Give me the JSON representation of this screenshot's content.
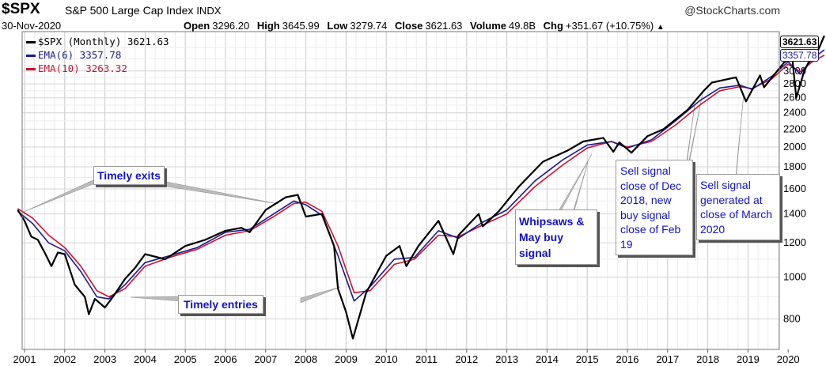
{
  "header": {
    "symbol": "$SPX",
    "name": "S&P 500 Large Cap Index",
    "exchange": "INDX",
    "brand": "@StockCharts.com",
    "date": "30-Nov-2020",
    "stats": [
      {
        "label": "Open",
        "value": "3296.20"
      },
      {
        "label": "High",
        "value": "3645.99"
      },
      {
        "label": "Low",
        "value": "3279.74"
      },
      {
        "label": "Close",
        "value": "3621.63"
      },
      {
        "label": "Volume",
        "value": "49.8B"
      },
      {
        "label": "Chg",
        "value": "+351.67 (+10.75%)"
      }
    ],
    "chg_arrow": "▲"
  },
  "legend": [
    {
      "text": "$SPX (Monthly) 3621.63",
      "color": "#000000"
    },
    {
      "text": "EMA(6) 3357.78",
      "color": "#1a1a8c"
    },
    {
      "text": "EMA(10) 3263.32",
      "color": "#cc1133"
    }
  ],
  "annotations": {
    "exits": "Timely exits",
    "entries": "Timely entries",
    "whipsaws": "Whipsaws & May buy signal",
    "sell2018": "Sell signal close of Dec 2018, new buy signal close of Feb 19",
    "sell2020": "Sell signal generated at close of March 2020"
  },
  "last_labels": {
    "price": "3621.63",
    "ema6": "3357.78"
  },
  "chart_data": {
    "type": "line",
    "scale": "log",
    "ylim": [
      680,
      3700
    ],
    "y_ticks": [
      800,
      1000,
      1200,
      1400,
      1600,
      1800,
      2000,
      2200,
      2400,
      2600,
      2800,
      3000
    ],
    "x_ticks": [
      "2001",
      "2002",
      "2003",
      "2004",
      "2005",
      "2006",
      "2007",
      "2008",
      "2009",
      "2010",
      "2011",
      "2012",
      "2013",
      "2014",
      "2015",
      "2016",
      "2017",
      "2018",
      "2019",
      "2020"
    ],
    "x_start": 2001.0,
    "series": [
      {
        "name": "$SPX (Monthly)",
        "color": "#000000",
        "x": [
          2000.83,
          2001.0,
          2001.17,
          2001.33,
          2001.5,
          2001.67,
          2001.83,
          2002.0,
          2002.25,
          2002.5,
          2002.6,
          2002.75,
          2003.0,
          2003.2,
          2003.5,
          2003.75,
          2004.0,
          2004.5,
          2005.0,
          2005.5,
          2006.0,
          2006.4,
          2006.6,
          2007.0,
          2007.5,
          2007.8,
          2008.0,
          2008.4,
          2008.7,
          2008.8,
          2009.0,
          2009.17,
          2009.5,
          2010.0,
          2010.33,
          2010.5,
          2010.8,
          2011.3,
          2011.67,
          2011.8,
          2012.3,
          2012.4,
          2012.8,
          2013.3,
          2013.9,
          2014.5,
          2014.9,
          2015.4,
          2015.65,
          2015.8,
          2016.1,
          2016.5,
          2016.9,
          2017.5,
          2017.9,
          2018.1,
          2018.7,
          2018.95,
          2019.3,
          2019.4,
          2019.9,
          2020.1,
          2020.2,
          2020.4,
          2020.6,
          2020.75,
          2020.9
        ],
        "y": [
          1430,
          1350,
          1240,
          1220,
          1140,
          1060,
          1140,
          1130,
          960,
          900,
          820,
          890,
          850,
          900,
          990,
          1050,
          1130,
          1100,
          1180,
          1220,
          1280,
          1300,
          1270,
          1430,
          1530,
          1550,
          1380,
          1400,
          1180,
          940,
          830,
          720,
          920,
          1120,
          1180,
          1060,
          1180,
          1350,
          1130,
          1250,
          1400,
          1310,
          1420,
          1620,
          1850,
          1960,
          2060,
          2100,
          1950,
          2050,
          1940,
          2120,
          2200,
          2440,
          2700,
          2820,
          2900,
          2550,
          2930,
          2750,
          3140,
          3230,
          2600,
          3000,
          3270,
          3360,
          3622
        ]
      },
      {
        "name": "EMA(6)",
        "color": "#1a1a8c",
        "x": [
          2000.83,
          2001.2,
          2001.6,
          2002.0,
          2002.4,
          2002.8,
          2003.1,
          2003.5,
          2004.0,
          2004.6,
          2005.3,
          2006.0,
          2006.6,
          2007.2,
          2007.7,
          2008.0,
          2008.4,
          2008.8,
          2009.2,
          2009.6,
          2010.2,
          2010.7,
          2011.3,
          2011.8,
          2012.4,
          2013.0,
          2013.7,
          2014.4,
          2015.0,
          2015.6,
          2016.0,
          2016.6,
          2017.2,
          2017.8,
          2018.3,
          2018.8,
          2019.1,
          2019.6,
          2020.0,
          2020.3,
          2020.6,
          2020.9
        ],
        "y": [
          1420,
          1330,
          1200,
          1150,
          1030,
          900,
          890,
          960,
          1080,
          1120,
          1170,
          1270,
          1290,
          1400,
          1500,
          1470,
          1390,
          1120,
          880,
          950,
          1100,
          1110,
          1280,
          1230,
          1340,
          1430,
          1670,
          1870,
          2020,
          2060,
          1990,
          2080,
          2300,
          2560,
          2740,
          2780,
          2720,
          2920,
          3150,
          2950,
          3200,
          3358
        ]
      },
      {
        "name": "EMA(10)",
        "color": "#cc1133",
        "x": [
          2000.83,
          2001.2,
          2001.6,
          2002.0,
          2002.4,
          2002.8,
          2003.1,
          2003.5,
          2004.0,
          2004.6,
          2005.3,
          2006.0,
          2006.6,
          2007.2,
          2007.7,
          2008.0,
          2008.4,
          2008.8,
          2009.2,
          2009.6,
          2010.2,
          2010.7,
          2011.3,
          2011.8,
          2012.4,
          2013.0,
          2013.7,
          2014.4,
          2015.0,
          2015.6,
          2016.0,
          2016.6,
          2017.2,
          2017.8,
          2018.3,
          2018.8,
          2019.1,
          2019.6,
          2020.0,
          2020.3,
          2020.6,
          2020.9
        ],
        "y": [
          1440,
          1370,
          1250,
          1170,
          1060,
          930,
          900,
          940,
          1060,
          1110,
          1160,
          1250,
          1280,
          1380,
          1480,
          1490,
          1420,
          1180,
          920,
          930,
          1070,
          1100,
          1250,
          1240,
          1320,
          1400,
          1620,
          1820,
          1990,
          2060,
          2000,
          2060,
          2250,
          2500,
          2700,
          2760,
          2730,
          2880,
          3110,
          2990,
          3150,
          3263
        ]
      }
    ]
  }
}
